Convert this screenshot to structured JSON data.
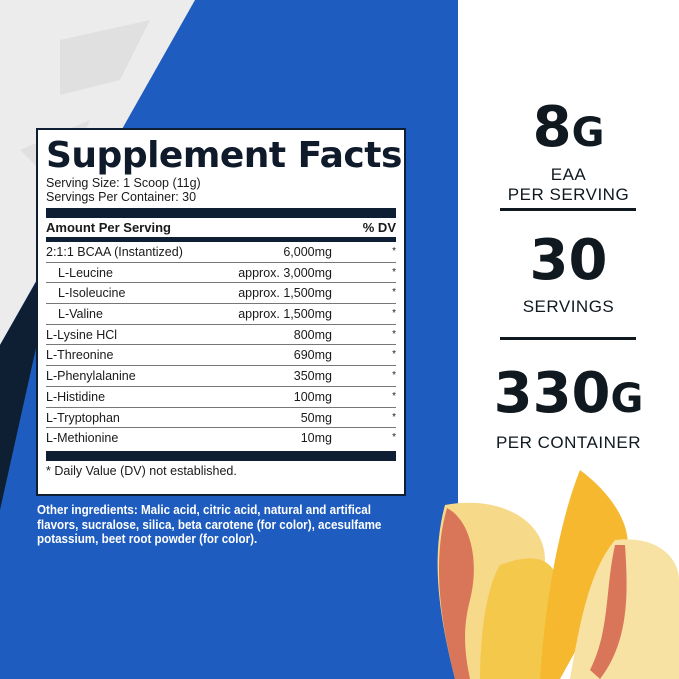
{
  "colors": {
    "blue": "#1e5cbf",
    "navy": "#0f1f33",
    "logo_grey": "#ececec",
    "white": "#ffffff"
  },
  "label": {
    "title": "Supplement Facts",
    "serving_size": "Serving Size: 1 Scoop (11g)",
    "servings_per_container": "Servings Per Container: 30",
    "amount_header": "Amount Per Serving",
    "dv_header": "% DV",
    "rows": [
      {
        "name": "2:1:1 BCAA (Instantized)",
        "amount": "6,000mg",
        "dv": "*",
        "sub": false
      },
      {
        "name": "L-Leucine",
        "amount": "approx. 3,000mg",
        "dv": "*",
        "sub": true
      },
      {
        "name": "L-Isoleucine",
        "amount": "approx. 1,500mg",
        "dv": "*",
        "sub": true
      },
      {
        "name": "L-Valine",
        "amount": "approx. 1,500mg",
        "dv": "*",
        "sub": true
      },
      {
        "name": "L-Lysine HCl",
        "amount": "800mg",
        "dv": "*",
        "sub": false
      },
      {
        "name": "L-Threonine",
        "amount": "690mg",
        "dv": "*",
        "sub": false
      },
      {
        "name": "L-Phenylalanine",
        "amount": "350mg",
        "dv": "*",
        "sub": false
      },
      {
        "name": "L-Histidine",
        "amount": "100mg",
        "dv": "*",
        "sub": false
      },
      {
        "name": "L-Tryptophan",
        "amount": "50mg",
        "dv": "*",
        "sub": false
      },
      {
        "name": "L-Methionine",
        "amount": "10mg",
        "dv": "*",
        "sub": false
      }
    ],
    "footnote": "* Daily Value (DV) not established."
  },
  "other_ingredients": "Other ingredients: Malic acid, citric acid, natural and artifical flavors, sucralose, silica, beta carotene (for color), acesulfame potassium, beet root powder (for color).",
  "stats": [
    {
      "value": "8",
      "unit": "G",
      "caption1": "EAA",
      "caption2": "PER SERVING"
    },
    {
      "value": "30",
      "unit": "",
      "caption1": "SERVINGS",
      "caption2": ""
    },
    {
      "value": "330",
      "unit": "G",
      "caption1": "PER CONTAINER",
      "caption2": ""
    }
  ]
}
